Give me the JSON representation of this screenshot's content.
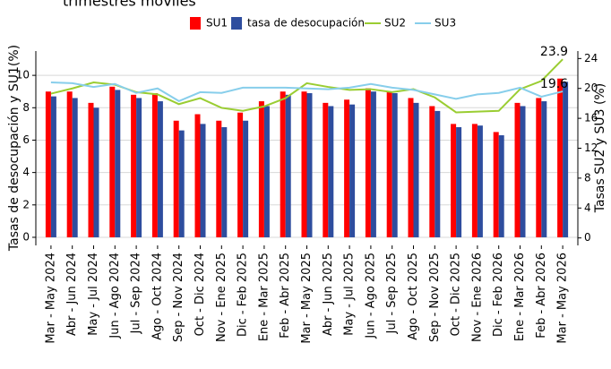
{
  "chart_data": {
    "type": "bar",
    "title": "trimestres móviles",
    "ylabel": "Tasas de desocupación y SU1(%)",
    "y2label": "Tasas SU2 y SU3 (%)",
    "categories": [
      "Mar - May 2024",
      "Abr - Jun 2024",
      "May - Jul 2024",
      "Jun - Ago 2024",
      "Jul - Sep 2024",
      "Ago - Oct 2024",
      "Sep - Nov 2024",
      "Oct - Dic 2024",
      "Nov - Ene 2025",
      "Dic - Feb 2025",
      "Ene - Mar 2025",
      "Feb - Abr 2025",
      "Mar - May 2025",
      "Abr - Jun 2025",
      "May - Jul 2025",
      "Jun - Ago 2025",
      "Jul - Sep 2025",
      "Ago - Oct 2025",
      "Sep - Nov 2025",
      "Oct - Dic 2025",
      "Nov - Ene 2026",
      "Dic - Feb 2026",
      "Ene - Mar 2026",
      "Feb - Abr 2026",
      "Mar - May 2026"
    ],
    "series": [
      {
        "name": "SU1",
        "type": "bar",
        "color": "#ff0000",
        "values": [
          9.0,
          9.0,
          8.3,
          9.3,
          8.8,
          8.9,
          7.2,
          7.6,
          7.2,
          7.7,
          8.4,
          9.0,
          9.0,
          8.3,
          8.5,
          9.2,
          9.0,
          8.6,
          8.1,
          7.0,
          7.0,
          6.5,
          8.3,
          8.6,
          9.8
        ]
      },
      {
        "name": "tasa de desocupación",
        "type": "bar",
        "color": "#2e4d9e",
        "values": [
          8.7,
          8.6,
          8.0,
          9.1,
          8.6,
          8.4,
          6.6,
          7.0,
          6.8,
          7.2,
          8.1,
          8.8,
          8.9,
          8.1,
          8.2,
          9.0,
          8.9,
          8.3,
          7.8,
          6.8,
          6.9,
          6.3,
          8.1,
          8.4,
          9.6
        ]
      },
      {
        "name": "SU2",
        "type": "line",
        "axis": "y2",
        "color": "#9acd32",
        "label_last": true,
        "values": [
          19.3,
          20.0,
          20.8,
          20.5,
          19.5,
          19.2,
          17.9,
          18.7,
          17.4,
          17.0,
          17.6,
          18.7,
          20.7,
          20.2,
          19.8,
          19.9,
          19.5,
          19.9,
          18.8,
          16.8,
          16.9,
          17.0,
          19.9,
          21.0,
          23.9
        ]
      },
      {
        "name": "SU3",
        "type": "line",
        "axis": "y2",
        "color": "#87ceeb",
        "label_last": true,
        "values": [
          20.8,
          20.7,
          20.2,
          20.6,
          19.4,
          20.0,
          18.3,
          19.5,
          19.4,
          20.1,
          20.1,
          20.1,
          20.0,
          19.9,
          20.1,
          20.6,
          20.1,
          19.8,
          19.2,
          18.6,
          19.2,
          19.4,
          20.1,
          18.9,
          19.6
        ]
      }
    ],
    "ylim": [
      -0.5,
      11.5
    ],
    "yticks": [
      0,
      2,
      4,
      6,
      8,
      10
    ],
    "y2lim": [
      -1,
      25
    ],
    "y2ticks": [
      0,
      4,
      8,
      12,
      16,
      20,
      24
    ],
    "grid": true
  }
}
